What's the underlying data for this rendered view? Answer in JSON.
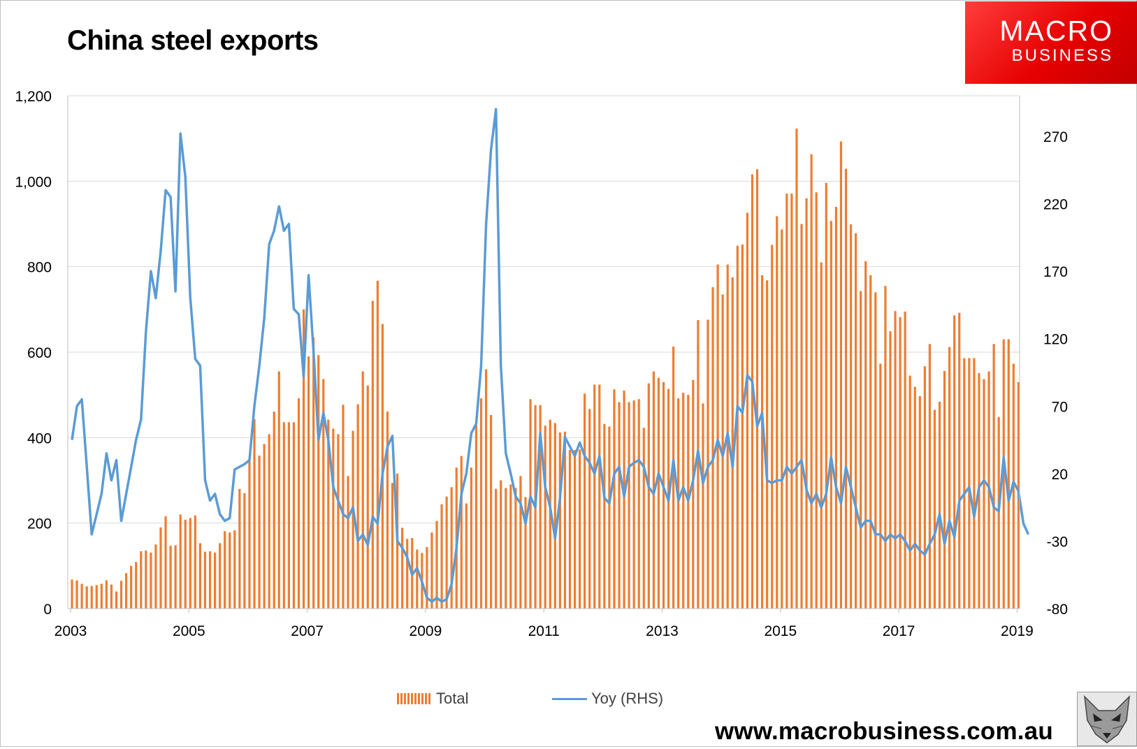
{
  "title": "China steel exports",
  "logo": {
    "line1": "MACRO",
    "line2": "BUSINESS"
  },
  "footer_url": "www.macrobusiness.com.au",
  "colors": {
    "bars": "#ed7d31",
    "line": "#5b9bd5",
    "grid": "#d9d9d9",
    "logo_red": "#e60000"
  },
  "icons": {
    "logo": "macro-business-logo",
    "mascot": "fox-icon"
  },
  "chart_data": {
    "type": "bar",
    "title": "China steel exports",
    "x_tick_labels": [
      "2003",
      "2005",
      "2007",
      "2009",
      "2011",
      "2013",
      "2015",
      "2017",
      "2019"
    ],
    "left_axis": {
      "min": 0,
      "max": 1200,
      "ticks": [
        "0",
        "200",
        "400",
        "600",
        "800",
        "1,000",
        "1,200"
      ]
    },
    "right_axis": {
      "min": -80,
      "max": 300,
      "ticks": [
        "-80",
        "-30",
        "20",
        "70",
        "120",
        "170",
        "220",
        "270"
      ]
    },
    "grid": true,
    "legend_position": "bottom",
    "x_start": "2003-01",
    "series": [
      {
        "name": "Total",
        "type": "bar",
        "axis": "left",
        "values": [
          68,
          66,
          58,
          52,
          53,
          55,
          58,
          66,
          56,
          40,
          65,
          83,
          100,
          109,
          134,
          136,
          131,
          150,
          190,
          216,
          147,
          148,
          220,
          208,
          212,
          218,
          153,
          133,
          134,
          131,
          153,
          181,
          178,
          183,
          280,
          270,
          350,
          443,
          358,
          385,
          408,
          461,
          555,
          436,
          436,
          436,
          492,
          700,
          590,
          634,
          593,
          537,
          442,
          421,
          408,
          477,
          310,
          416,
          478,
          555,
          522,
          720,
          767,
          666,
          461,
          294,
          316,
          189,
          163,
          165,
          138,
          130,
          144,
          178,
          205,
          244,
          262,
          284,
          330,
          357,
          246,
          330,
          430,
          492,
          560,
          453,
          280,
          300,
          282,
          290,
          282,
          310,
          261,
          490,
          476,
          476,
          428,
          442,
          434,
          412,
          414,
          371,
          371,
          372,
          503,
          467,
          524,
          524,
          432,
          426,
          513,
          483,
          510,
          483,
          487,
          490,
          423,
          527,
          555,
          540,
          530,
          514,
          613,
          492,
          505,
          500,
          535,
          675,
          480,
          676,
          752,
          805,
          735,
          805,
          775,
          849,
          852,
          926,
          1016,
          1028,
          780,
          768,
          851,
          918,
          887,
          971,
          971,
          1123,
          900,
          960,
          1063,
          974,
          810,
          996,
          907,
          940,
          1093,
          1029,
          899,
          878,
          743,
          813,
          780,
          740,
          573,
          755,
          649,
          696,
          682,
          695,
          545,
          519,
          497,
          567,
          619,
          465,
          484,
          556,
          612,
          686,
          692,
          586,
          586,
          586,
          551,
          537,
          555,
          619,
          448,
          630,
          630,
          573,
          530
        ]
      },
      {
        "name": "Yoy (RHS)",
        "type": "line",
        "axis": "right",
        "values": [
          45,
          70,
          75,
          25,
          -25,
          -10,
          5,
          35,
          15,
          30,
          -15,
          5,
          25,
          45,
          60,
          125,
          170,
          150,
          185,
          230,
          225,
          155,
          272,
          240,
          150,
          105,
          100,
          15,
          0,
          5,
          -10,
          -15,
          -13,
          23,
          25,
          27,
          30,
          70,
          100,
          135,
          190,
          200,
          218,
          200,
          205,
          142,
          138,
          92,
          167,
          110,
          45,
          65,
          45,
          10,
          0,
          -10,
          -13,
          -5,
          -30,
          -25,
          -33,
          -12,
          -17,
          20,
          40,
          48,
          -30,
          -35,
          -42,
          -55,
          -50,
          -60,
          -72,
          -75,
          -72,
          -75,
          -73,
          -62,
          -35,
          5,
          20,
          50,
          57,
          100,
          205,
          260,
          290,
          100,
          35,
          20,
          3,
          -2,
          -17,
          3,
          -5,
          50,
          10,
          -5,
          -28,
          2,
          47,
          40,
          33,
          43,
          33,
          28,
          20,
          33,
          2,
          -2,
          20,
          25,
          3,
          25,
          28,
          30,
          25,
          10,
          5,
          20,
          10,
          0,
          30,
          0,
          10,
          0,
          15,
          37,
          13,
          25,
          30,
          45,
          33,
          50,
          25,
          70,
          65,
          93,
          88,
          55,
          65,
          15,
          13,
          15,
          15,
          25,
          20,
          25,
          30,
          8,
          -2,
          5,
          -5,
          5,
          32,
          10,
          -2,
          25,
          10,
          -5,
          -20,
          -15,
          -15,
          -25,
          -25,
          -30,
          -25,
          -28,
          -25,
          -30,
          -37,
          -32,
          -37,
          -40,
          -32,
          -25,
          -10,
          -32,
          -15,
          -27,
          0,
          5,
          10,
          -12,
          10,
          15,
          10,
          -5,
          -8,
          32,
          0,
          14,
          7,
          -17,
          -25
        ]
      }
    ]
  }
}
